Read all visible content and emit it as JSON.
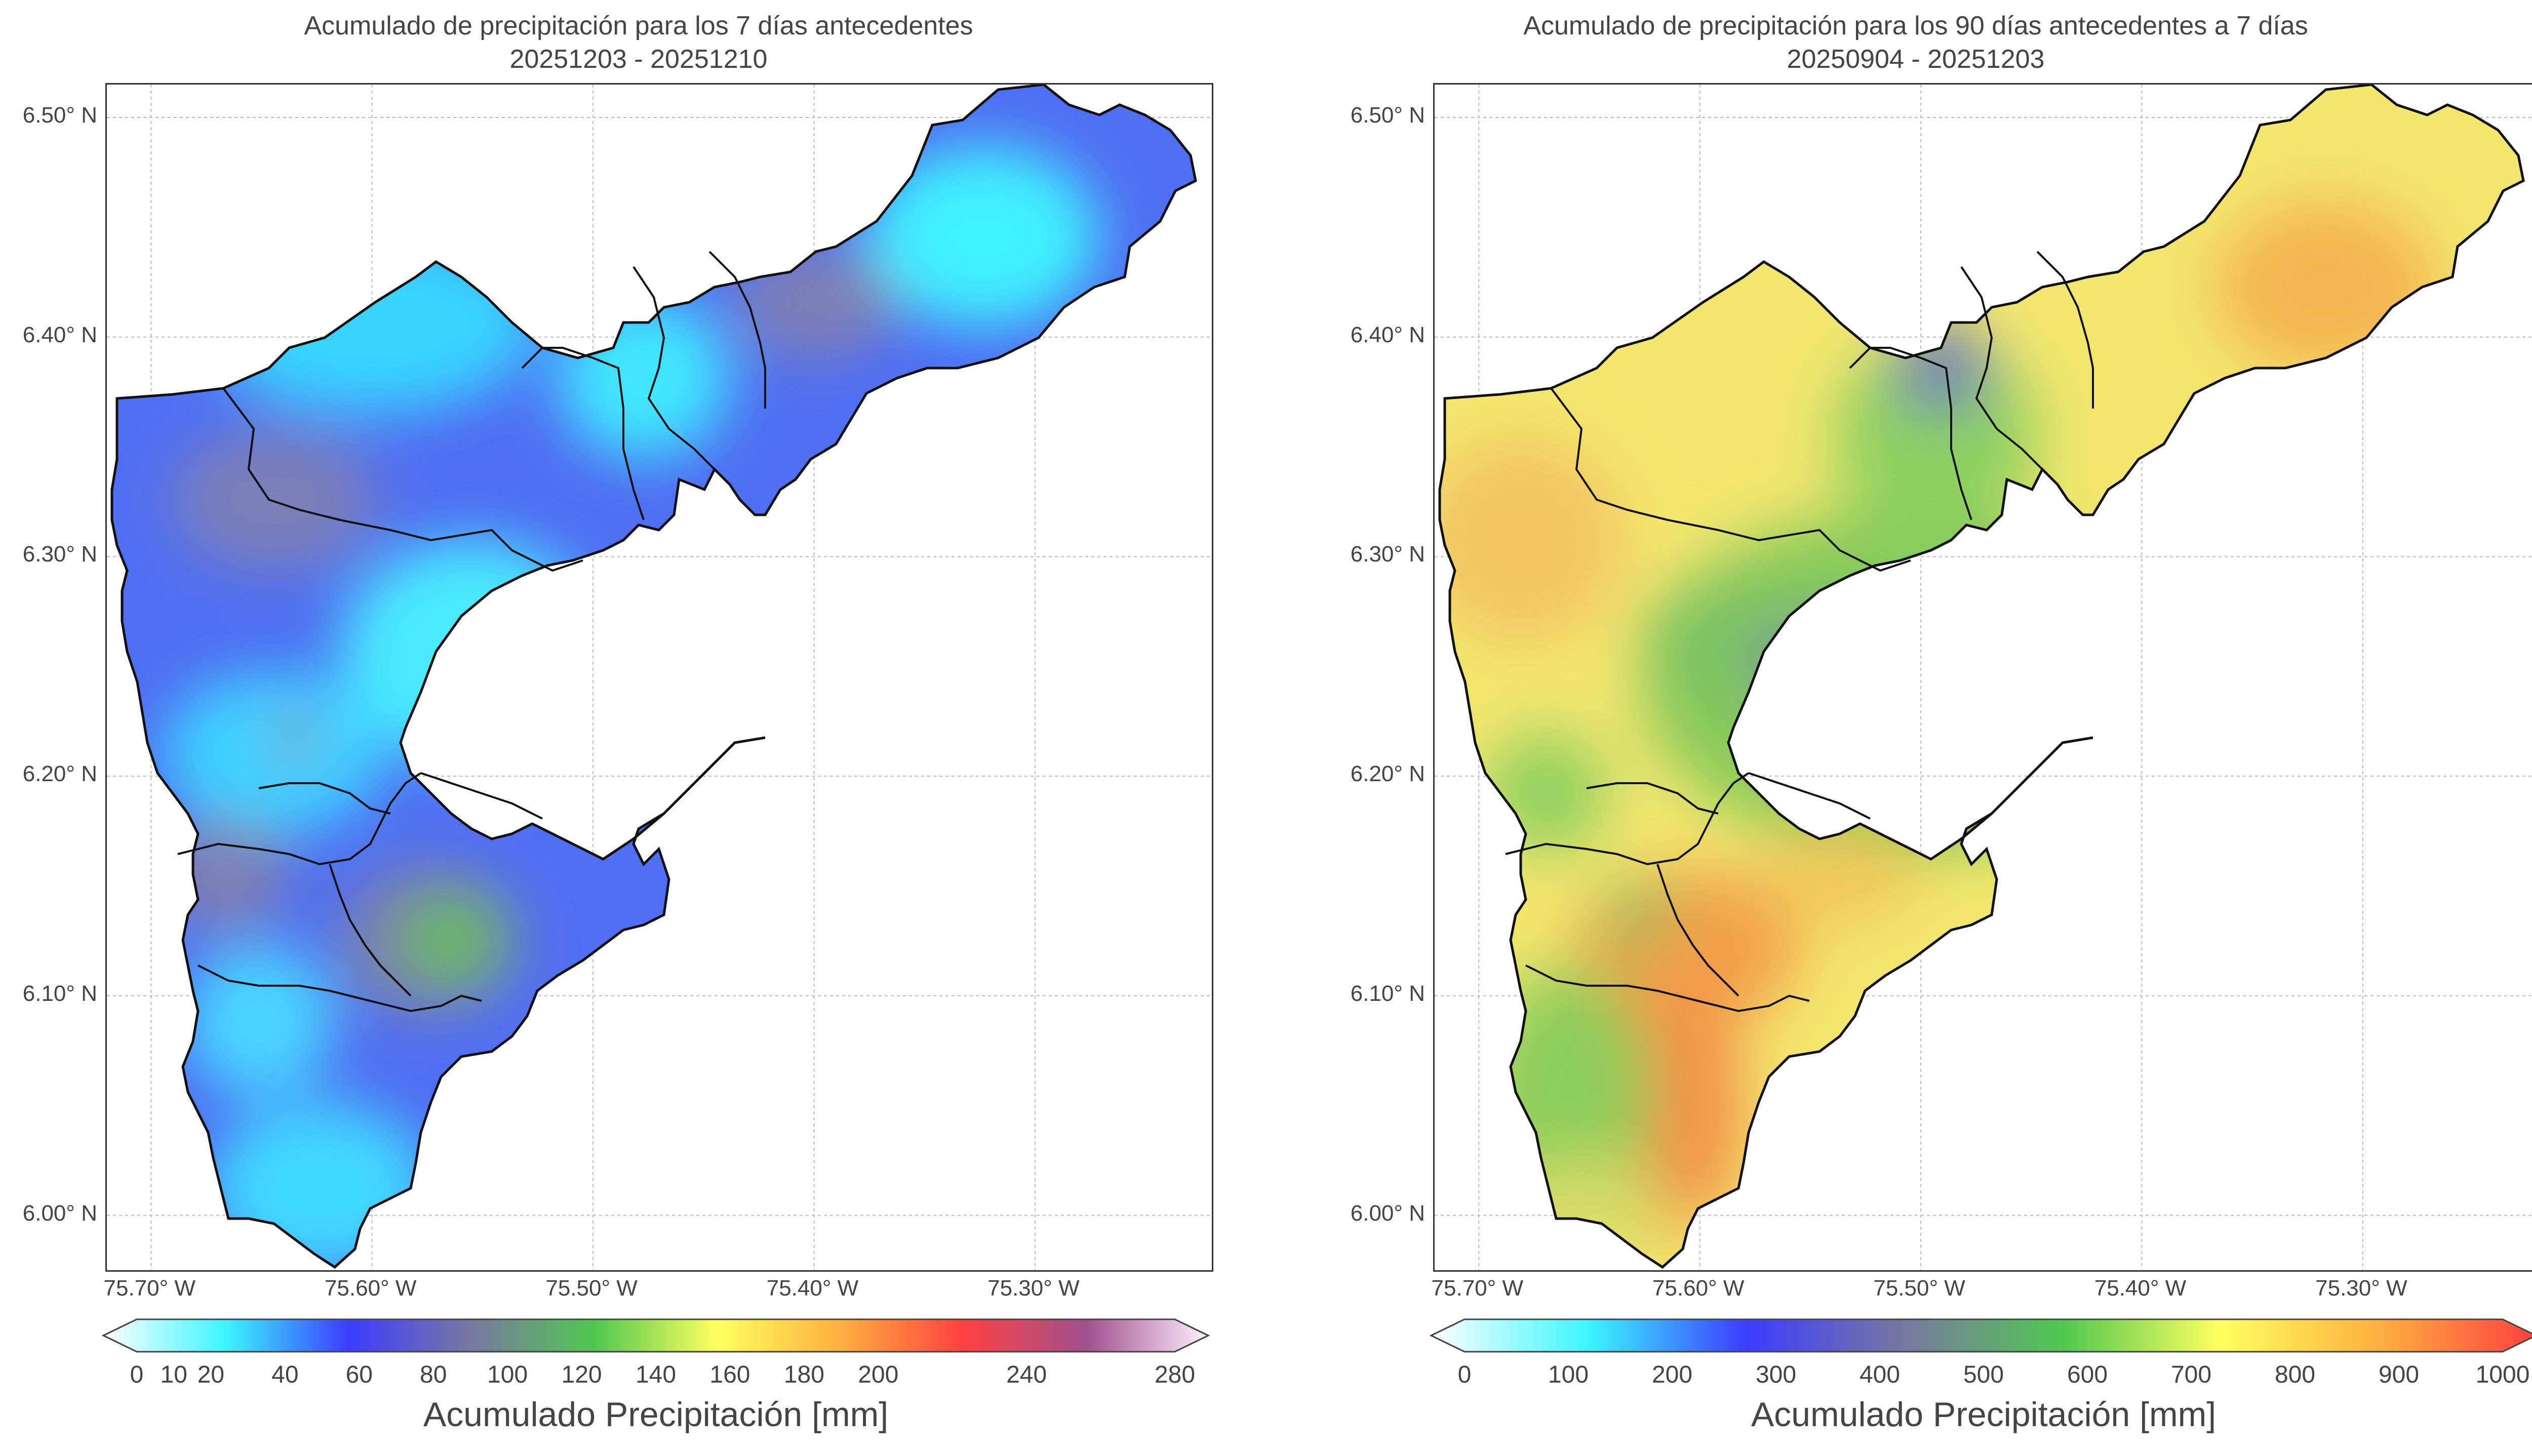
{
  "panels": [
    {
      "title_line1": "Acumulado de precipitación para los 7 días antecedentes",
      "title_line2": "20251203 - 20251210",
      "y_ticks": [
        "6.50° N",
        "6.40° N",
        "6.30° N",
        "6.20° N",
        "6.10° N",
        "6.00° N"
      ],
      "x_ticks": [
        "75.70° W",
        "75.60° W",
        "75.50° W",
        "75.40° W",
        "75.30° W"
      ],
      "colorbar_ticks": [
        "0",
        "10",
        "20",
        "40",
        "60",
        "80",
        "100",
        "120",
        "140",
        "160",
        "180",
        "200",
        "240",
        "280"
      ],
      "colorbar_tick_values": [
        0,
        10,
        20,
        40,
        60,
        80,
        100,
        120,
        140,
        160,
        180,
        200,
        240,
        280
      ],
      "colorbar_label": "Acumulado Precipitación [mm]",
      "colorbar_colors": [
        "#ffffff",
        "#3cf5ff",
        "#3c3cff",
        "#7878a0",
        "#50c850",
        "#ffff60",
        "#ffb040",
        "#ff4040",
        "#a0508c",
        "#fff0ff"
      ],
      "dominant_colors": [
        "#3cd0ff",
        "#4a60f0",
        "#7474b4",
        "#64b464"
      ]
    },
    {
      "title_line1": "Acumulado de precipitación para los 90 días antecedentes a 7 días",
      "title_line2": "20250904 - 20251203",
      "y_ticks": [
        "6.50° N",
        "6.40° N",
        "6.30° N",
        "6.20° N",
        "6.10° N",
        "6.00° N"
      ],
      "x_ticks": [
        "75.70° W",
        "75.60° W",
        "75.50° W",
        "75.40° W",
        "75.30° W"
      ],
      "colorbar_ticks": [
        "0",
        "100",
        "200",
        "300",
        "400",
        "500",
        "600",
        "700",
        "800",
        "900",
        "1000"
      ],
      "colorbar_tick_values": [
        0,
        100,
        200,
        300,
        400,
        500,
        600,
        700,
        800,
        900,
        1000
      ],
      "colorbar_label": "Acumulado Precipitación [mm]",
      "colorbar_colors": [
        "#ffffff",
        "#3cf5ff",
        "#3c3cff",
        "#7878a0",
        "#50c850",
        "#ffff60",
        "#ffb040",
        "#ff4040"
      ],
      "dominant_colors": [
        "#f5e870",
        "#8ccc5c",
        "#f0a048",
        "#7a7ab0"
      ]
    }
  ],
  "map_extent": {
    "lon_min": -75.72,
    "lon_max": -75.22,
    "lat_min": 5.975,
    "lat_max": 6.515
  }
}
